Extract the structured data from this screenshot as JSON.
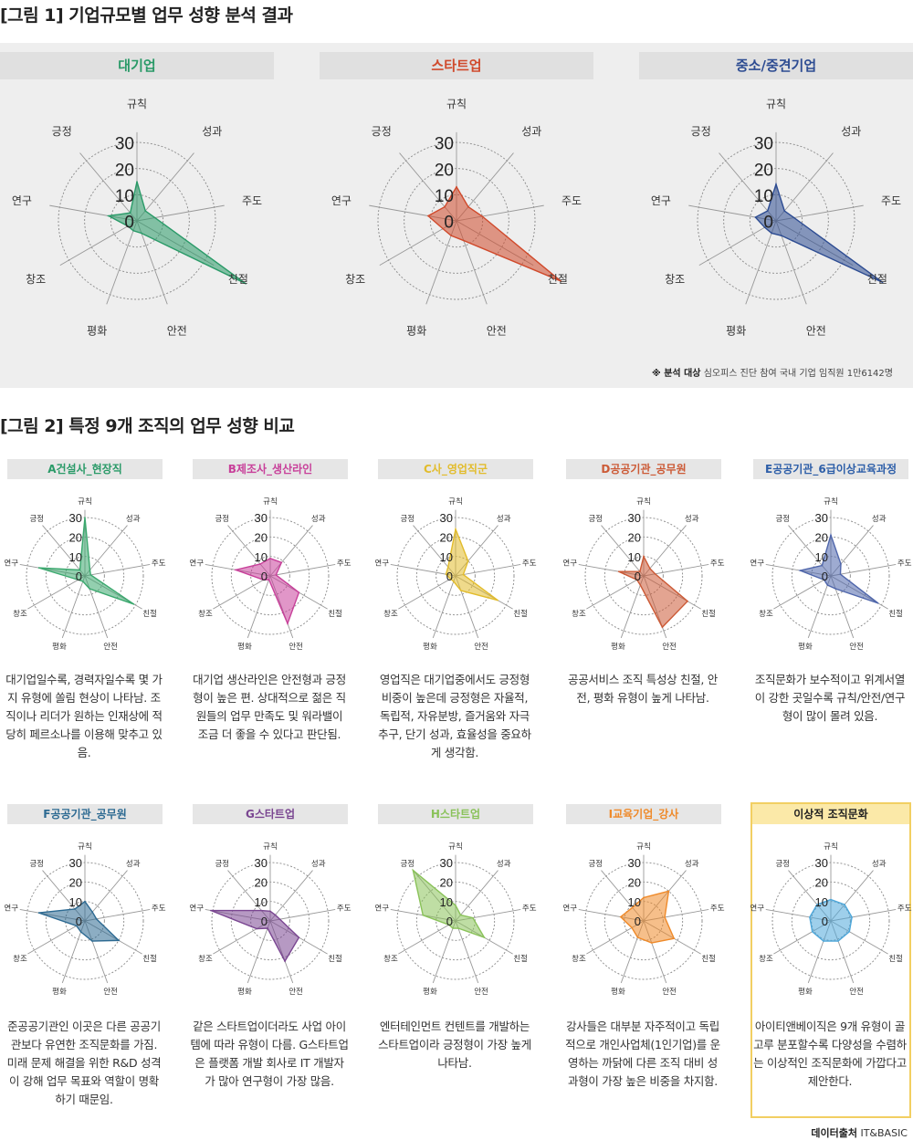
{
  "fig1": {
    "title": "[그림 1] 기업규모별 업무 성향 분석 결과",
    "note_label": "※ 분석 대상",
    "note_text": "심오피스 진단 참여 국내 기업 임직원 1만6142명"
  },
  "fig2": {
    "title": "[그림 2] 특정 9개 조직의 업무 성향 비교",
    "ideal_title": "이상적 조직문화"
  },
  "source": {
    "label": "데이터출처",
    "text": "IT&BASIC"
  },
  "colors": {
    "green": "#2a9a68",
    "red": "#d04a2c",
    "blue": "#2d4c92",
    "a_green": "#3ba86e",
    "b_magenta": "#c8409a",
    "c_yellow": "#e2bc2c",
    "d_red": "#cc5a36",
    "e_blue": "#4f66ab",
    "f_blue": "#2d6a92",
    "g_purple": "#7a4691",
    "h_green": "#8ac25a",
    "i_orange": "#ef8a2a",
    "ideal_sky": "#4ea7da"
  },
  "chart_data": [
    {
      "type": "radar",
      "id": "large",
      "title": "대기업",
      "title_color": "#2a9a68",
      "color": "#2a9a68",
      "axes": [
        "규칙",
        "성과",
        "주도",
        "친절",
        "안전",
        "평화",
        "창조",
        "연구",
        "긍정"
      ],
      "ticks": [
        0,
        10,
        20,
        30
      ],
      "rmax": 30,
      "values": [
        15,
        5,
        7,
        48,
        5,
        4,
        4,
        11,
        4
      ]
    },
    {
      "type": "radar",
      "id": "startup",
      "title": "스타트업",
      "title_color": "#d04a2c",
      "color": "#d04a2c",
      "axes": [
        "규칙",
        "성과",
        "주도",
        "친절",
        "안전",
        "평화",
        "창조",
        "연구",
        "긍정"
      ],
      "ticks": [
        0,
        10,
        20,
        30
      ],
      "rmax": 30,
      "values": [
        13,
        7,
        10,
        46,
        8,
        6,
        6,
        11,
        7
      ]
    },
    {
      "type": "radar",
      "id": "sme",
      "title": "중소/중견기업",
      "title_color": "#2d4c92",
      "color": "#2d4c92",
      "axes": [
        "규칙",
        "성과",
        "주도",
        "친절",
        "안전",
        "평화",
        "창조",
        "연구",
        "긍정"
      ],
      "ticks": [
        0,
        10,
        20,
        30
      ],
      "rmax": 30,
      "values": [
        14,
        5,
        7,
        47,
        6,
        5,
        5,
        8,
        5
      ]
    },
    {
      "type": "radar",
      "id": "A",
      "title": "A건설사_현장직",
      "title_color": "#2a9a68",
      "color": "#3ba86e",
      "axes": [
        "규칙",
        "성과",
        "주도",
        "친절",
        "안전",
        "평화",
        "창조",
        "연구",
        "긍정"
      ],
      "ticks": [
        0,
        10,
        20,
        30
      ],
      "rmax": 30,
      "values": [
        30,
        4,
        3,
        29,
        7,
        3,
        4,
        24,
        4
      ],
      "description": "대기업일수록, 경력자일수록 몇 가지 유형에 쏠림 현상이 나타남. 조직이나 리더가 원하는 인재상에 적당히 페르소나를 이용해 맞추고 있음."
    },
    {
      "type": "radar",
      "id": "B",
      "title": "B제조사_생산라인",
      "title_color": "#c8409a",
      "color": "#c8409a",
      "axes": [
        "규칙",
        "성과",
        "주도",
        "친절",
        "안전",
        "평화",
        "창조",
        "연구",
        "긍정"
      ],
      "ticks": [
        0,
        10,
        20,
        30
      ],
      "rmax": 30,
      "values": [
        9,
        9,
        3,
        17,
        26,
        2,
        4,
        18,
        8
      ],
      "description": "대기업 생산라인은 안전형과 긍정형이 높은 편. 상대적으로 젊은 직원들의 업무 만족도 및 워라밸이 조금 더 좋을 수 있다고 판단됨."
    },
    {
      "type": "radar",
      "id": "C",
      "title": "C사_영업직군",
      "title_color": "#e2bc2c",
      "color": "#e2bc2c",
      "axes": [
        "규칙",
        "성과",
        "주도",
        "친절",
        "안전",
        "평화",
        "창조",
        "연구",
        "긍정"
      ],
      "ticks": [
        0,
        10,
        20,
        30
      ],
      "rmax": 30,
      "values": [
        24,
        10,
        4,
        25,
        8,
        3,
        3,
        5,
        6
      ],
      "description": "영업직은 대기업중에서도 긍정형 비중이 높은데 긍정형은 자율적, 독립적, 자유분방, 즐거움와 자극 추구, 단기 성과, 효율성을 중요하게 생각함."
    },
    {
      "type": "radar",
      "id": "D",
      "title": "D공공기관_공무원",
      "title_color": "#cc5a36",
      "color": "#cc5a36",
      "axes": [
        "규칙",
        "성과",
        "주도",
        "친절",
        "안전",
        "평화",
        "창조",
        "연구",
        "긍정"
      ],
      "ticks": [
        0,
        10,
        20,
        30
      ],
      "rmax": 30,
      "values": [
        10,
        5,
        6,
        26,
        28,
        5,
        4,
        13,
        3
      ],
      "description": "공공서비스 조직 특성상 친절, 안전, 평화 유형이 높게 나타남."
    },
    {
      "type": "radar",
      "id": "E",
      "title": "E공공기관_6급이상교육과정",
      "title_color": "#2d5ea8",
      "color": "#4f66ab",
      "axes": [
        "규칙",
        "성과",
        "주도",
        "친절",
        "안전",
        "평화",
        "창조",
        "연구",
        "긍정"
      ],
      "ticks": [
        0,
        10,
        20,
        30
      ],
      "rmax": 30,
      "values": [
        21,
        8,
        5,
        28,
        7,
        5,
        4,
        16,
        7
      ],
      "description": "조직문화가 보수적이고 위계서열이 강한 곳일수록 규칙/안전/연구형이 많이 몰려 있음."
    },
    {
      "type": "radar",
      "id": "F",
      "title": "F공공기관_공무원",
      "title_color": "#2d6a92",
      "color": "#2d6a92",
      "axes": [
        "규칙",
        "성과",
        "주도",
        "친절",
        "안전",
        "평화",
        "창조",
        "연구",
        "긍정"
      ],
      "ticks": [
        0,
        10,
        20,
        30
      ],
      "rmax": 30,
      "values": [
        10,
        6,
        6,
        20,
        11,
        6,
        5,
        24,
        8
      ],
      "description": "준공공기관인 이곳은 다른 공공기관보다 유연한 조직문화를 가짐. 미래 문제 해결을 위한 R&D 성격이 강해 업무 목표와 역할이 명확하기 때문임."
    },
    {
      "type": "radar",
      "id": "G",
      "title": "G스타트업",
      "title_color": "#7a4691",
      "color": "#7a4691",
      "axes": [
        "규칙",
        "성과",
        "주도",
        "친절",
        "안전",
        "평화",
        "창조",
        "연구",
        "긍정"
      ],
      "ticks": [
        0,
        10,
        20,
        30
      ],
      "rmax": 30,
      "values": [
        5,
        4,
        5,
        17,
        22,
        4,
        8,
        31,
        7
      ],
      "description": "같은 스타트업이더라도 사업 아이템에 따라 유형이 다름. G스타트업은 플랫폼 개발 회사로 IT 개발자가 많아 연구형이 가장 많음."
    },
    {
      "type": "radar",
      "id": "H",
      "title": "H스타트업",
      "title_color": "#8ac25a",
      "color": "#8ac25a",
      "axes": [
        "규칙",
        "성과",
        "주도",
        "친절",
        "안전",
        "평화",
        "창조",
        "연구",
        "긍정"
      ],
      "ticks": [
        0,
        10,
        20,
        30
      ],
      "rmax": 30,
      "values": [
        8,
        4,
        9,
        17,
        4,
        4,
        4,
        17,
        34
      ],
      "description": "엔터테인먼트 컨텐트를 개발하는 스타트업이라 긍정형이 가장 높게 나타남."
    },
    {
      "type": "radar",
      "id": "I",
      "title": "I교육기업_강사",
      "title_color": "#ef8a2a",
      "color": "#ef8a2a",
      "axes": [
        "규칙",
        "성과",
        "주도",
        "친절",
        "안전",
        "평화",
        "창조",
        "연구",
        "긍정"
      ],
      "ticks": [
        0,
        10,
        20,
        30
      ],
      "rmax": 30,
      "values": [
        12,
        20,
        11,
        18,
        12,
        9,
        7,
        12,
        9
      ],
      "description": "강사들은 대부분 자주적이고 독립적으로 개인사업체(1인기업)를 운영하는 까닭에 다른 조직 대비 성과형이 가장 높은 비중을 차지함."
    },
    {
      "type": "radar",
      "id": "ideal",
      "title": "이상적 조직문화",
      "title_color": "#222222",
      "color": "#4ea7da",
      "axes": [
        "규칙",
        "성과",
        "주도",
        "친절",
        "안전",
        "평화",
        "창조",
        "연구",
        "긍정"
      ],
      "ticks": [
        0,
        10,
        20,
        30
      ],
      "rmax": 30,
      "values": [
        11,
        11,
        11,
        11,
        11,
        11,
        11,
        11,
        11
      ],
      "description": "아이티앤베이직은 9개 유형이 골고루 분포할수록 다양성을 수렴하는 이상적인 조직문화에 가깝다고 제안한다."
    }
  ]
}
